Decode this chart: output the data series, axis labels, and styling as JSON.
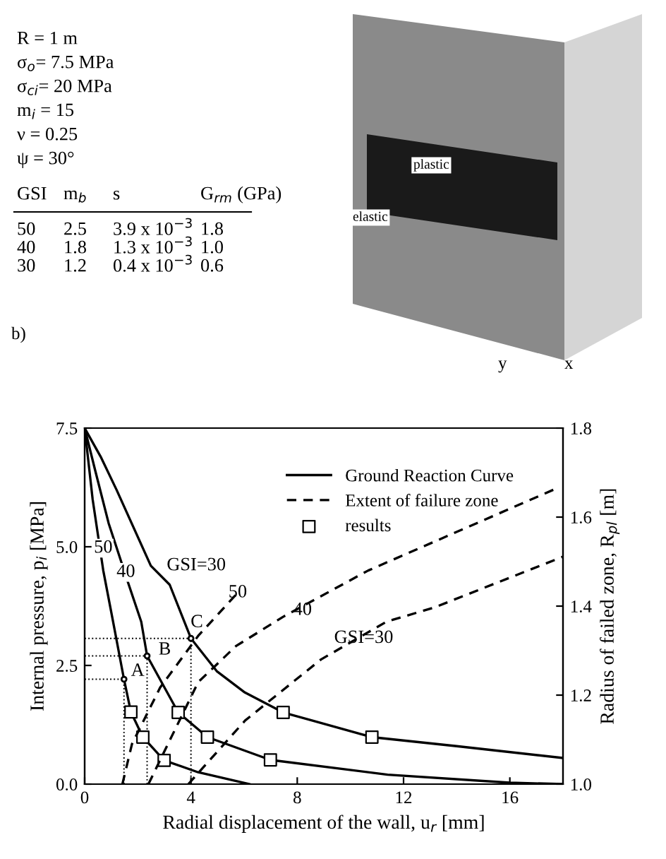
{
  "chart_data": {
    "type": "line",
    "xlabel": "Radial displacement of the wall, u$_{r}$ [mm]",
    "ylabel": "Internal pressure, p$_{i}$ [MPa]",
    "y2label": "Radius of failed zone, R$_{pl}$ [m]",
    "xlim": [
      0,
      18
    ],
    "xticks": [
      0,
      4,
      8,
      12,
      16
    ],
    "ylim": [
      0,
      7.5
    ],
    "yticks": [
      {
        "value": 0,
        "label": "0.0"
      },
      {
        "value": 2.5,
        "label": "2.5"
      },
      {
        "value": 5,
        "label": "5.0"
      },
      {
        "value": 7.5,
        "label": "7.5"
      }
    ],
    "y2lim": [
      1.0,
      1.8
    ],
    "y2ticks": [
      {
        "value": 1.0,
        "label": "1.0"
      },
      {
        "value": 1.2,
        "label": "1.2"
      },
      {
        "value": 1.4,
        "label": "1.4"
      },
      {
        "value": 1.6,
        "label": "1.6"
      },
      {
        "value": 1.8,
        "label": "1.8"
      }
    ],
    "legend": "top right",
    "grid": false,
    "series": [
      {
        "name": "Ground Reaction Curve",
        "color": "#000000",
        "line_style": "solid",
        "marker": "none",
        "x": [
          0,
          0.3,
          0.7,
          1.07,
          1.48,
          1.74,
          2.19,
          2.99,
          4.27,
          6.2
        ],
        "values": [
          7.5,
          6.0,
          4.5,
          3.42,
          2.21,
          1.52,
          0.99,
          0.5,
          0.25,
          0
        ]
      },
      {
        "color": "#000000",
        "line_style": "solid",
        "marker": "none",
        "x": [
          0,
          0.4,
          0.9,
          1.6,
          2.13,
          2.35,
          3.52,
          4.62,
          6.99,
          11.4,
          16,
          18
        ],
        "values": [
          7.5,
          6.6,
          5.5,
          4.3,
          3.42,
          2.7,
          1.51,
          0.99,
          0.51,
          0.2,
          0.03,
          0
        ]
      },
      {
        "color": "#000000",
        "line_style": "solid",
        "marker": "none",
        "x": [
          0,
          0.6,
          1.2,
          2.49,
          3.2,
          4.0,
          4.97,
          6.03,
          7.47,
          10.81,
          14.0,
          18.0
        ],
        "values": [
          7.5,
          6.9,
          6.2,
          4.6,
          4.2,
          3.07,
          2.38,
          1.93,
          1.51,
          0.99,
          0.8,
          0.55
        ]
      },
      {
        "name": "Extent of failure zone",
        "axis": "y2",
        "color": "#000000",
        "line_style": "dashed",
        "marker": "none",
        "x": [
          1.42,
          1.78,
          2.84,
          4.27,
          5.76
        ],
        "values": [
          1.0,
          1.09,
          1.217,
          1.333,
          1.43
        ]
      },
      {
        "axis": "y2",
        "color": "#000000",
        "line_style": "dashed",
        "marker": "none",
        "x": [
          2.4,
          4.27,
          5.69,
          7.47,
          10.67,
          17.7
        ],
        "values": [
          1.0,
          1.229,
          1.31,
          1.376,
          1.48,
          1.663
        ]
      },
      {
        "axis": "y2",
        "color": "#000000",
        "line_style": "dashed",
        "marker": "none",
        "x": [
          3.9,
          6.04,
          8.89,
          11.36,
          13.16,
          18.0
        ],
        "values": [
          1.0,
          1.143,
          1.28,
          1.365,
          1.397,
          1.511
        ]
      },
      {
        "name": "results",
        "type": "scatter",
        "color": "#000000",
        "marker": "square",
        "x": [
          1.74,
          2.19,
          2.99,
          3.52,
          4.62,
          6.99,
          7.47,
          10.81
        ],
        "values": [
          1.52,
          0.99,
          0.5,
          1.51,
          0.99,
          0.51,
          1.51,
          0.99
        ]
      }
    ],
    "ref_lines": [
      {
        "axis": "x",
        "value": 1.48,
        "line_style": "dotted",
        "color": "#000000"
      },
      {
        "axis": "x",
        "value": 2.35,
        "line_style": "dotted",
        "color": "#000000"
      },
      {
        "axis": "x",
        "value": 4.0,
        "line_style": "dotted",
        "color": "#000000"
      },
      {
        "axis": "y",
        "value": 2.21,
        "line_style": "dotted",
        "color": "#000000"
      },
      {
        "axis": "y",
        "value": 2.7,
        "line_style": "dotted",
        "color": "#000000"
      },
      {
        "axis": "y",
        "value": 3.07,
        "line_style": "dotted",
        "color": "#000000"
      }
    ],
    "annotations": [
      "R = 1 m",
      "σ$_{o}$= 7.5 MPa",
      "σ$_{ci}$= 20 MPa",
      "m$_{i}$ = 15",
      "ν = 0.25",
      "ψ = 30°",
      "GSI",
      "m$_{b}$",
      "s",
      "G$_{rm}$ (GPa)",
      "50",
      "2.5",
      "3.9 x 10$^{−3}$",
      "1.8",
      "40",
      "1.8",
      "1.3 x 10$^{−3}$",
      "1.0",
      "30",
      "1.2",
      "0.4 x 10$^{−3}$",
      "0.6",
      "b)",
      "plastic",
      "elastic",
      "y",
      "x",
      {
        "text": "50",
        "x": 0.7,
        "y": 4.97
      },
      {
        "text": "40",
        "x": 1.55,
        "y": 4.46
      },
      {
        "text": "GSI=30",
        "x": 4.2,
        "y": 4.6
      },
      {
        "text": "50",
        "x": 5.76,
        "y": 4.03
      },
      {
        "text": "40",
        "x": 8.2,
        "y": 3.66
      },
      {
        "text": "GSI=30",
        "x": 10.5,
        "y": 3.07
      },
      {
        "text": "A",
        "x": 1.48,
        "y": 2.21
      },
      {
        "text": "B",
        "x": 2.35,
        "y": 2.7
      },
      {
        "text": "C",
        "x": 4.0,
        "y": 3.07
      }
    ]
  }
}
